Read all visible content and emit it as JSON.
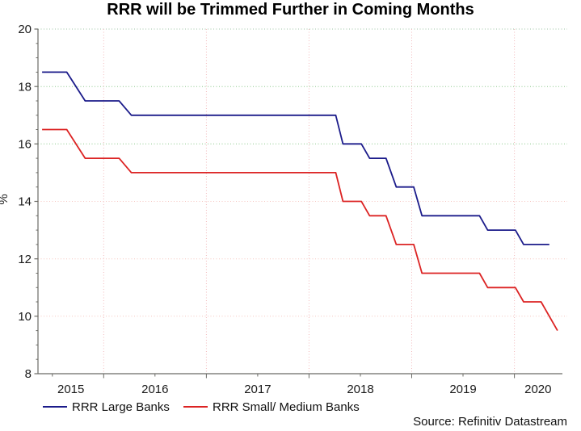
{
  "title": "RRR will be Trimmed Further in Coming Months",
  "source_note": "Source: Refinitiv Datastream",
  "colors": {
    "axis": "#6b6b66",
    "tick_text": "#1a1a1a",
    "title_text": "#000000",
    "ygrid_green": "#8cc98c",
    "ygrid_pink": "#f5c5bf",
    "xgrid_pink": "#f2babc",
    "large_banks_line": "#1b1b8a",
    "small_medium_banks_line": "#dc2323"
  },
  "chart_data": {
    "type": "line",
    "title": "RRR will be Trimmed Further in Coming Months",
    "xlabel": "",
    "ylabel": "%",
    "ylim": [
      8,
      20
    ],
    "yticks": [
      8,
      10,
      12,
      14,
      16,
      18,
      20
    ],
    "y_minor_step": 0.5,
    "xlim": [
      2015.36,
      2020.46
    ],
    "x_minor_step": 0.5,
    "x_year_labels": [
      "2015",
      "2016",
      "2017",
      "2018",
      "2019",
      "2020"
    ],
    "grid": true,
    "legend_position": "bottom-left",
    "ygridlines": [
      {
        "value": 10,
        "color": "#f5c5bf"
      },
      {
        "value": 12,
        "color": "#f5c5bf"
      },
      {
        "value": 14,
        "color": "#f5c5bf"
      },
      {
        "value": 16,
        "color": "#8cc98c"
      },
      {
        "value": 18,
        "color": "#8cc98c"
      },
      {
        "value": 20,
        "color": "#9cc4a4"
      }
    ],
    "xgridline_years": [
      2016,
      2017,
      2018,
      2019,
      2020
    ],
    "series": [
      {
        "name": "RRR Large Banks",
        "color": "#1b1b8a",
        "points": [
          [
            2015.4,
            18.5
          ],
          [
            2015.64,
            18.5
          ],
          [
            2015.82,
            17.5
          ],
          [
            2016.15,
            17.5
          ],
          [
            2016.27,
            17.0
          ],
          [
            2018.26,
            17.0
          ],
          [
            2018.33,
            16.0
          ],
          [
            2018.51,
            16.0
          ],
          [
            2018.59,
            15.5
          ],
          [
            2018.75,
            15.5
          ],
          [
            2018.85,
            14.5
          ],
          [
            2019.02,
            14.5
          ],
          [
            2019.1,
            13.5
          ],
          [
            2019.66,
            13.5
          ],
          [
            2019.74,
            13.0
          ],
          [
            2020.01,
            13.0
          ],
          [
            2020.09,
            12.5
          ],
          [
            2020.34,
            12.5
          ]
        ]
      },
      {
        "name": "RRR Small/ Medium Banks",
        "color": "#dc2323",
        "points": [
          [
            2015.4,
            16.5
          ],
          [
            2015.64,
            16.5
          ],
          [
            2015.82,
            15.5
          ],
          [
            2016.15,
            15.5
          ],
          [
            2016.27,
            15.0
          ],
          [
            2018.26,
            15.0
          ],
          [
            2018.33,
            14.0
          ],
          [
            2018.51,
            14.0
          ],
          [
            2018.59,
            13.5
          ],
          [
            2018.75,
            13.5
          ],
          [
            2018.85,
            12.5
          ],
          [
            2019.02,
            12.5
          ],
          [
            2019.1,
            11.5
          ],
          [
            2019.66,
            11.5
          ],
          [
            2019.74,
            11.0
          ],
          [
            2020.01,
            11.0
          ],
          [
            2020.09,
            10.5
          ],
          [
            2020.26,
            10.5
          ],
          [
            2020.42,
            9.5
          ]
        ]
      }
    ]
  }
}
